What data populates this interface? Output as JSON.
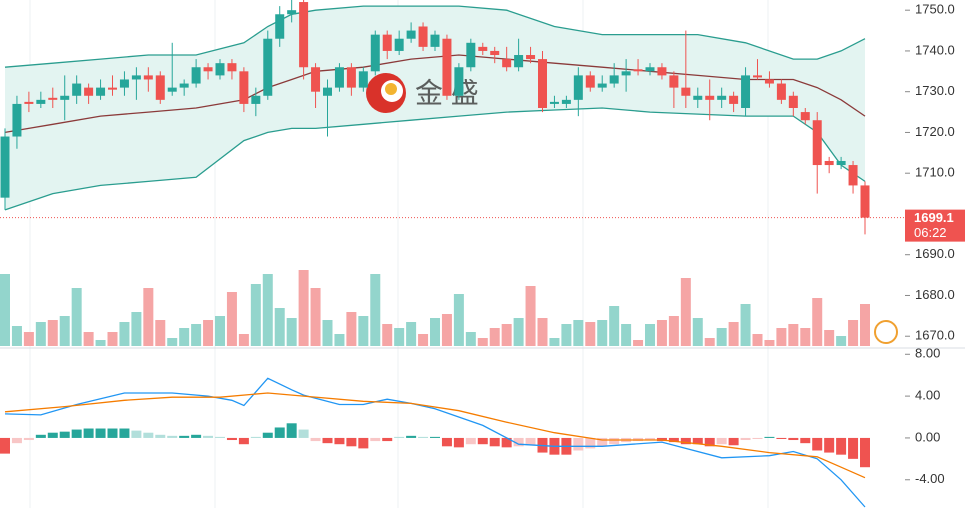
{
  "chart_data": [
    {
      "type": "candlestick",
      "watermark": "金 盛",
      "open": [
        1704,
        1719,
        1727.5,
        1727,
        1728.5,
        1728,
        1729,
        1731,
        1729,
        1731,
        1731,
        1733,
        1734,
        1734,
        1730,
        1731,
        1732,
        1736,
        1734,
        1737,
        1735,
        1727,
        1729,
        1743,
        1749,
        1752,
        1736,
        1729,
        1731,
        1736,
        1731,
        1735,
        1744,
        1740,
        1743,
        1746,
        1741,
        1743,
        1729,
        1736,
        1741,
        1740,
        1738,
        1736,
        1739,
        1738,
        1727,
        1727,
        1728,
        1734,
        1731,
        1732,
        1734,
        1735.5,
        1735,
        1736,
        1734,
        1731,
        1728,
        1729,
        1728,
        1729,
        1726,
        1734,
        1733,
        1732,
        1729,
        1725,
        1723,
        1713,
        1712,
        1712,
        1707
      ],
      "high": [
        1721,
        1729,
        1730,
        1730,
        1731,
        1734,
        1734,
        1732,
        1733,
        1734,
        1735,
        1736,
        1736,
        1735,
        1742,
        1733,
        1738,
        1737,
        1738,
        1738,
        1736,
        1731,
        1745,
        1751,
        1753,
        1753,
        1737,
        1733,
        1737,
        1737,
        1736,
        1745,
        1745,
        1745,
        1747,
        1747,
        1745,
        1744,
        1737,
        1743,
        1742,
        1741,
        1741,
        1743,
        1741,
        1740,
        1729,
        1729,
        1736,
        1735,
        1734,
        1737,
        1738,
        1738,
        1737,
        1737,
        1735,
        1745,
        1731,
        1733,
        1731,
        1730,
        1736,
        1738,
        1735,
        1733,
        1730,
        1726,
        1725,
        1714,
        1714,
        1713,
        1708
      ],
      "low": [
        1701,
        1716,
        1725,
        1726,
        1726,
        1723,
        1727,
        1727,
        1728,
        1729,
        1729,
        1728,
        1730,
        1727,
        1729,
        1729,
        1731,
        1733,
        1733,
        1733,
        1725,
        1724,
        1728,
        1741,
        1747,
        1733,
        1726,
        1719,
        1730,
        1729,
        1730,
        1734,
        1738,
        1739,
        1742,
        1740,
        1740,
        1728,
        1728,
        1735,
        1739,
        1737,
        1735,
        1735,
        1737,
        1725,
        1726,
        1726,
        1724,
        1730,
        1730,
        1731,
        1730,
        1734,
        1734,
        1733,
        1726,
        1726,
        1726,
        1723,
        1726,
        1725,
        1724,
        1733,
        1731,
        1727,
        1724,
        1722,
        1705,
        1710,
        1711,
        1705,
        1695
      ],
      "close": [
        1719,
        1727,
        1727,
        1728,
        1728,
        1729,
        1732,
        1729,
        1731,
        1730.5,
        1733,
        1734,
        1733,
        1728,
        1731,
        1732,
        1736,
        1735,
        1737,
        1735,
        1727,
        1729,
        1743,
        1749,
        1750,
        1736,
        1730,
        1731,
        1736,
        1731,
        1735,
        1744,
        1740,
        1743,
        1745,
        1741,
        1744,
        1729,
        1736,
        1742,
        1740,
        1739,
        1736,
        1739,
        1738,
        1726,
        1727.5,
        1728,
        1734,
        1731,
        1732,
        1734,
        1735,
        1735,
        1736,
        1734,
        1731,
        1729,
        1729,
        1728,
        1729,
        1727,
        1734,
        1733.5,
        1732,
        1728,
        1726,
        1723,
        1712,
        1712,
        1713,
        1707,
        1699.1
      ],
      "up_color": "#26a69a",
      "down_color": "#ef5350",
      "volume": [
        72,
        20,
        14,
        24,
        26,
        30,
        58,
        14,
        6,
        14,
        24,
        34,
        58,
        26,
        8,
        18,
        22,
        26,
        30,
        54,
        12,
        62,
        72,
        38,
        28,
        76,
        58,
        26,
        12,
        34,
        30,
        72,
        22,
        18,
        24,
        12,
        28,
        32,
        52,
        14,
        8,
        18,
        22,
        28,
        60,
        28,
        8,
        22,
        26,
        24,
        26,
        40,
        22,
        6,
        22,
        26,
        30,
        68,
        28,
        8,
        18,
        24,
        42,
        12,
        6,
        18,
        22,
        18,
        48,
        16,
        10,
        26,
        42
      ],
      "volume_lim": [
        0,
        90
      ],
      "volume_up_color": "#93d5cc",
      "volume_down_color": "#f5a5a5",
      "bands": [
        {
          "color": "#2a9d8f",
          "x": [
            0,
            4,
            8,
            12,
            16,
            20,
            22,
            24,
            26,
            30,
            34,
            38,
            42,
            46,
            50,
            54,
            58,
            62,
            66,
            68,
            70,
            72
          ],
          "values": [
            1736,
            1737,
            1738,
            1739,
            1739,
            1742,
            1746,
            1749,
            1750,
            1751,
            1751,
            1751,
            1750,
            1746,
            1744,
            1744,
            1744,
            1742,
            1738,
            1738,
            1740,
            1743
          ]
        },
        {
          "color": "#8b3a3a",
          "x": [
            0,
            4,
            8,
            12,
            16,
            20,
            22,
            24,
            26,
            30,
            34,
            38,
            42,
            46,
            50,
            54,
            58,
            62,
            66,
            68,
            70,
            72
          ],
          "values": [
            1720,
            1722,
            1724,
            1725,
            1726,
            1728,
            1731,
            1733,
            1735,
            1736,
            1738,
            1739,
            1738,
            1737,
            1736,
            1735,
            1734,
            1733,
            1733,
            1731,
            1728,
            1724
          ]
        },
        {
          "color": "#2a9d8f",
          "x": [
            0,
            4,
            8,
            12,
            16,
            20,
            22,
            24,
            26,
            30,
            34,
            38,
            42,
            46,
            50,
            54,
            58,
            62,
            66,
            68,
            70,
            72
          ],
          "values": [
            1701,
            1705,
            1707,
            1708,
            1709,
            1718,
            1720,
            1721,
            1721,
            1722,
            1723,
            1724,
            1725,
            1725.5,
            1726,
            1725,
            1724.5,
            1724,
            1724,
            1720,
            1712,
            1708
          ]
        }
      ],
      "band_fill": "#e3f4f1",
      "last_price": 1699.1,
      "countdown": "06:22",
      "ylim": [
        1667.6,
        1752.5
      ],
      "yticks": [
        {
          "value": 1750,
          "label": "1750.0"
        },
        {
          "value": 1740,
          "label": "1740.0"
        },
        {
          "value": 1730,
          "label": "1730.0"
        },
        {
          "value": 1720,
          "label": "1720.0"
        },
        {
          "value": 1710,
          "label": "1710.0"
        },
        {
          "value": 1690,
          "label": "1690.0"
        },
        {
          "value": 1680,
          "label": "1680.0"
        },
        {
          "value": 1670,
          "label": "1670.0"
        }
      ]
    },
    {
      "type": "macd",
      "histogram": [
        -1.5,
        -0.5,
        -0.2,
        0.3,
        0.5,
        0.6,
        0.8,
        0.9,
        0.9,
        0.9,
        0.9,
        0.7,
        0.5,
        0.3,
        0.2,
        0.2,
        0.3,
        0.2,
        0.1,
        -0.2,
        -0.6,
        0.1,
        0.5,
        1.0,
        1.4,
        0.8,
        -0.3,
        -0.5,
        -0.6,
        -0.8,
        -1.0,
        -0.3,
        -0.3,
        0.1,
        0.2,
        0.1,
        0.1,
        -0.8,
        -0.9,
        -0.6,
        -0.6,
        -0.8,
        -0.9,
        -0.8,
        -0.7,
        -1.4,
        -1.6,
        -1.6,
        -1.2,
        -1.0,
        -0.8,
        -0.6,
        -0.4,
        -0.3,
        -0.2,
        -0.3,
        -0.4,
        -0.6,
        -0.6,
        -0.8,
        -0.6,
        -0.7,
        -0.2,
        -0.1,
        0.1,
        -0.1,
        -0.2,
        -0.5,
        -1.2,
        -1.4,
        -1.6,
        -2.0,
        -2.8
      ],
      "hist_colors": [
        "#26a69a",
        "#b2dfdb",
        "#ef5350",
        "#f8c6c6"
      ],
      "series": [
        {
          "color": "#2196f3",
          "x": [
            0,
            3,
            6,
            10,
            14,
            17,
            19,
            20,
            22,
            24,
            25,
            28,
            30,
            32,
            34,
            36,
            40,
            43,
            46,
            50,
            55,
            60,
            64,
            66,
            68,
            70,
            72
          ],
          "values": [
            2.3,
            2.2,
            3.2,
            4.3,
            4.3,
            4.0,
            3.6,
            3.1,
            5.7,
            4.6,
            4.1,
            3.2,
            3.2,
            3.7,
            3.3,
            2.8,
            1.2,
            -0.6,
            -0.8,
            -0.8,
            -0.4,
            -1.9,
            -1.7,
            -1.3,
            -2.0,
            -4.0,
            -6.6
          ]
        },
        {
          "color": "#f57c00",
          "x": [
            0,
            5,
            10,
            14,
            18,
            22,
            25,
            30,
            34,
            38,
            42,
            46,
            50,
            55,
            60,
            64,
            68,
            70,
            72
          ],
          "values": [
            2.5,
            3.0,
            3.6,
            3.9,
            3.9,
            4.3,
            4.0,
            3.5,
            3.3,
            2.6,
            1.5,
            0.5,
            -0.2,
            -0.2,
            -0.8,
            -1.4,
            -1.8,
            -2.8,
            -3.8
          ]
        }
      ],
      "ylim": [
        -6.7,
        8.6
      ],
      "yticks": [
        {
          "value": 8,
          "label": "8.00"
        },
        {
          "value": 4,
          "label": "4.00"
        },
        {
          "value": 0,
          "label": "0.00"
        },
        {
          "value": -4,
          "label": "-4.00"
        }
      ]
    }
  ]
}
